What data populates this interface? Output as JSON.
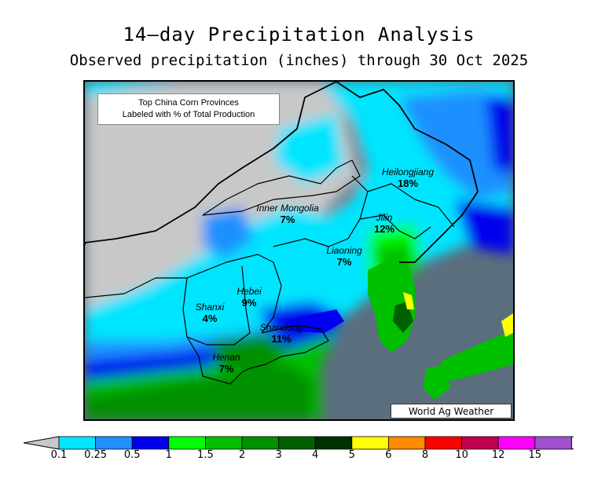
{
  "title": "14—day Precipitation Analysis",
  "subtitle": "Observed precipitation (inches) through 30 Oct 2025",
  "inset_note": {
    "line1": "Top China Corn Provinces",
    "line2": "Labeled with % of Total Production"
  },
  "credit": "World Ag Weather",
  "provinces": [
    {
      "name": "Heilongjiang",
      "pct": "18%"
    },
    {
      "name": "Inner Mongolia",
      "pct": "7%"
    },
    {
      "name": "Jilin",
      "pct": "12%"
    },
    {
      "name": "Liaoning",
      "pct": "7%"
    },
    {
      "name": "Hebei",
      "pct": "9%"
    },
    {
      "name": "Shanxi",
      "pct": "4%"
    },
    {
      "name": "Shandong",
      "pct": "11%"
    },
    {
      "name": "Henan",
      "pct": "7%"
    }
  ],
  "colorbar": {
    "labels": [
      "0.1",
      "0.25",
      "0.5",
      "1",
      "1.5",
      "2",
      "3",
      "4",
      "5",
      "6",
      "8",
      "10",
      "12",
      "15"
    ],
    "colors": [
      "#00e5ff",
      "#1e90ff",
      "#0000ee",
      "#00ff00",
      "#00c000",
      "#009000",
      "#006000",
      "#003000",
      "#ffff00",
      "#ff8c00",
      "#ff0000",
      "#c00050",
      "#ff00ff",
      "#a050d0"
    ],
    "below_color": "#c8c8c8",
    "above_color": "#ffffff"
  },
  "colors": {
    "ocean": "#5a6e7e",
    "no_precip": "#c8c8c8"
  }
}
